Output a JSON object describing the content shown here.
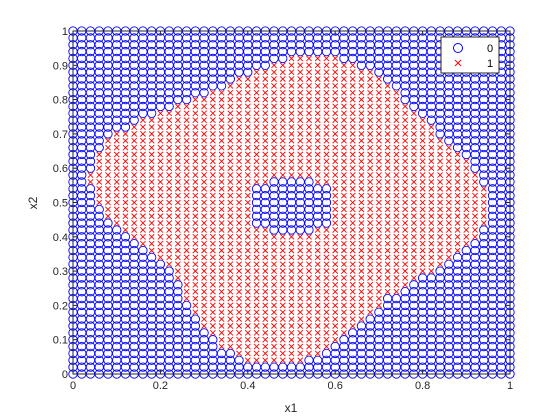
{
  "chart_data": {
    "type": "scatter",
    "title": "",
    "xlabel": "x1",
    "ylabel": "x2",
    "xlim": [
      0,
      1
    ],
    "ylim": [
      0,
      1
    ],
    "xticks": [
      "0",
      "0.2",
      "0.4",
      "0.6",
      "0.8",
      "1"
    ],
    "yticks": [
      "0",
      "0.1",
      "0.2",
      "0.3",
      "0.4",
      "0.5",
      "0.6",
      "0.7",
      "0.8",
      "0.9",
      "1"
    ],
    "grid": false,
    "legend_position": "top-right",
    "grid_points": {
      "x_count": 51,
      "y_count": 51,
      "x_step": 0.02,
      "y_step": 0.02
    },
    "series": [
      {
        "name": "0",
        "marker": "circle",
        "color": "#0000ff"
      },
      {
        "name": "1",
        "marker": "x",
        "color": "#ff0000"
      }
    ],
    "class_1_region": "Red crosses fill a large irregular blob centered near (0.5, 0.5), spanning roughly x 0.04 to 0.97 and y 0.05 to 0.95, with an inner island of blue circles near (0.5, 0.49)."
  }
}
